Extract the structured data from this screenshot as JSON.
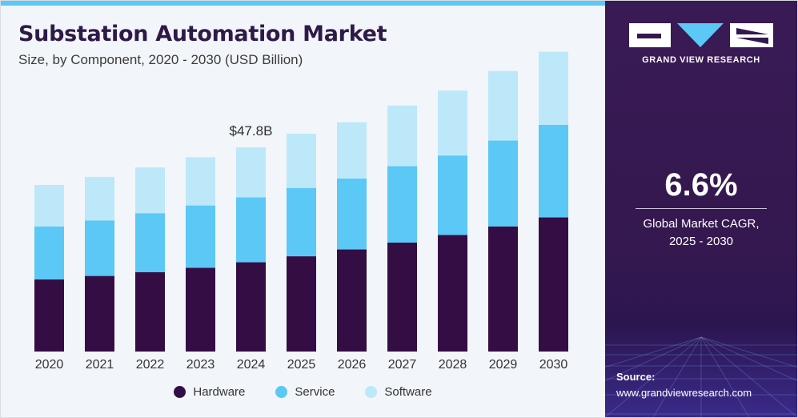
{
  "header": {
    "title": "Substation Automation Market",
    "subtitle": "Size, by Component, 2020 - 2030 (USD Billion)"
  },
  "colors": {
    "hardware": "#350d45",
    "service": "#5bc8f5",
    "software": "#bde8fa",
    "panel": "#33184e",
    "accent": "#5bc8f5"
  },
  "chart_data": {
    "type": "bar",
    "stacked": true,
    "categories": [
      "2020",
      "2021",
      "2022",
      "2023",
      "2024",
      "2025",
      "2026",
      "2027",
      "2028",
      "2029",
      "2030"
    ],
    "series": [
      {
        "name": "Hardware",
        "values": [
          16.9,
          17.7,
          18.6,
          19.6,
          20.9,
          22.3,
          23.9,
          25.5,
          27.3,
          29.3,
          31.4
        ]
      },
      {
        "name": "Service",
        "values": [
          12.4,
          13.0,
          13.8,
          14.6,
          15.2,
          16.0,
          16.6,
          17.9,
          18.6,
          20.1,
          21.7
        ]
      },
      {
        "name": "Software",
        "values": [
          9.7,
          10.2,
          10.7,
          11.3,
          11.7,
          12.7,
          13.2,
          14.2,
          15.2,
          16.3,
          17.1
        ]
      }
    ],
    "ylim": [
      0,
      75
    ],
    "grid": false,
    "legend_position": "bottom",
    "annotations": [
      {
        "category": "2024",
        "text": "$47.8B"
      }
    ]
  },
  "legend": {
    "items": [
      {
        "label": "Hardware"
      },
      {
        "label": "Service"
      },
      {
        "label": "Software"
      }
    ]
  },
  "sidebar": {
    "brand": "GRAND VIEW RESEARCH",
    "cagr_value": "6.6%",
    "cagr_label_line1": "Global Market CAGR,",
    "cagr_label_line2": "2025 - 2030",
    "source_label": "Source:",
    "source_url": "www.grandviewresearch.com"
  }
}
